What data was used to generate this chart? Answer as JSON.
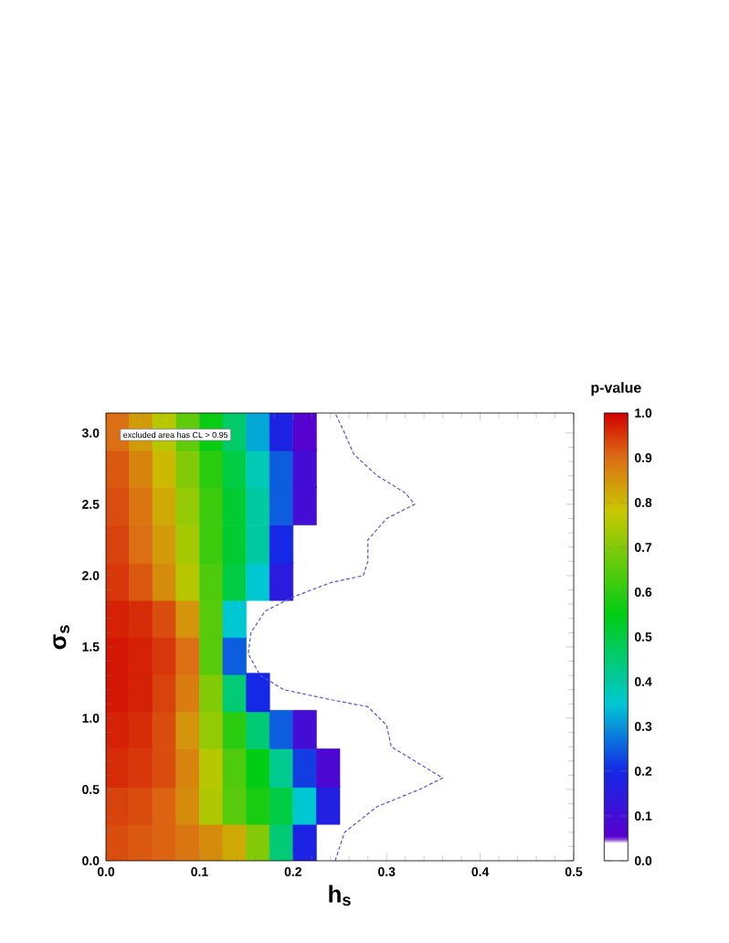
{
  "chart_data": {
    "type": "scatter",
    "xlabel": "h$_{s}$",
    "ylabel": "σ$_{s}$",
    "clabel": "p-value",
    "annotations": [
      "excluded area has CL > 0.95"
    ],
    "xlim": [
      0,
      0.5
    ],
    "ylim": [
      0,
      3.14
    ],
    "xticks": [
      {
        "value": 0,
        "label": "0.0"
      },
      0.1,
      0.2,
      0.3,
      0.4,
      0.5
    ],
    "yticks": [
      {
        "value": 0,
        "label": "0.0"
      },
      0.5,
      {
        "value": 1,
        "label": "1.0"
      },
      1.5,
      {
        "value": 2,
        "label": "2.0"
      },
      2.5,
      {
        "value": 3,
        "label": "3.0"
      }
    ],
    "clim": [
      0,
      1
    ],
    "cticks": [
      {
        "value": 0,
        "label": "0.0"
      },
      0.1,
      0.2,
      0.3,
      0.4,
      0.5,
      0.6,
      0.7,
      0.8,
      0.9,
      {
        "value": 1,
        "label": "1.0"
      }
    ],
    "marker": "square",
    "series": [
      {
        "colors": [
          "#d94d0e",
          "#da5810",
          "#db6312",
          "#da7612",
          "#d58c0d",
          "#cfaa07",
          "#82ca07",
          "#00ca73",
          "#1d23e3",
          "#d8420c",
          "#d94d0e",
          "#db6312",
          "#d58c0d",
          "#aec903",
          "#57cb0b",
          "#1acc11",
          "#00cc44",
          "#00c8d2",
          "#2220e1",
          "#d62c08",
          "#d7370a",
          "#d94d0e",
          "#d7840f",
          "#b7c802",
          "#4ecb0c",
          "#00cd14",
          "#00ca90",
          "#113de3",
          "#4c08d2",
          "#d52106",
          "#d62c08",
          "#d94d0e",
          "#d4940c",
          "#94c905",
          "#2bcc10",
          "#00ca73",
          "#0d5ddf",
          "#430dd5",
          "#d41604",
          "#d52106",
          "#d8420c",
          "#d97d11",
          "#82ca07",
          "#00ca73",
          "#1428e6",
          "#d41604",
          "#d52106",
          "#d7370a",
          "#dc6e14",
          "#57cb0b",
          "#0d5ddf",
          "#d52106",
          "#d62c08",
          "#d94d0e",
          "#d4940c",
          "#57cb0b",
          "#00c8d2",
          "#d7370a",
          "#da5810",
          "#d58c0d",
          "#b7c802",
          "#4ecb0c",
          "#00cc44",
          "#00c8d2",
          "#2b1bde",
          "#d8420c",
          "#dc6e14",
          "#d29b0a",
          "#a5c903",
          "#3dcb0e",
          "#00cc30",
          "#00c9a2",
          "#1428e6",
          "#d94d0e",
          "#da7612",
          "#cfaa07",
          "#94c905",
          "#3dcb0e",
          "#00cc30",
          "#00c9a2",
          "#0d5ddf",
          "#430dd5",
          "#da5810",
          "#d7840f",
          "#cbb903",
          "#82ca07",
          "#2bcc10",
          "#00cc44",
          "#00c9b6",
          "#0d5ddf",
          "#430dd5",
          "#dc6e14",
          "#d29b0a",
          "#b7c802",
          "#60cb0a",
          "#09cd13",
          "#00cb6a",
          "#04a8d6",
          "#1d23e3",
          "#5503cf"
        ],
        "x": [
          0.0125,
          0.0375,
          0.0625,
          0.0875,
          0.1125,
          0.1375,
          0.1625,
          0.1875,
          0.2125,
          0.0125,
          0.0375,
          0.0625,
          0.0875,
          0.1125,
          0.1375,
          0.1625,
          0.1875,
          0.2125,
          0.2375,
          0.0125,
          0.0375,
          0.0625,
          0.0875,
          0.1125,
          0.1375,
          0.1625,
          0.1875,
          0.2125,
          0.2375,
          0.0125,
          0.0375,
          0.0625,
          0.0875,
          0.1125,
          0.1375,
          0.1625,
          0.1875,
          0.2125,
          0.0125,
          0.0375,
          0.0625,
          0.0875,
          0.1125,
          0.1375,
          0.1625,
          0.0125,
          0.0375,
          0.0625,
          0.0875,
          0.1125,
          0.1375,
          0.0125,
          0.0375,
          0.0625,
          0.0875,
          0.1125,
          0.1375,
          0.0125,
          0.0375,
          0.0625,
          0.0875,
          0.1125,
          0.1375,
          0.1625,
          0.1875,
          0.0125,
          0.0375,
          0.0625,
          0.0875,
          0.1125,
          0.1375,
          0.1625,
          0.1875,
          0.0125,
          0.0375,
          0.0625,
          0.0875,
          0.1125,
          0.1375,
          0.1625,
          0.1875,
          0.2125,
          0.0125,
          0.0375,
          0.0625,
          0.0875,
          0.1125,
          0.1375,
          0.1625,
          0.1875,
          0.2125,
          0.0125,
          0.0375,
          0.0625,
          0.0875,
          0.1125,
          0.1375,
          0.1625,
          0.1875,
          0.2125
        ],
        "values": [
          0.13,
          0.13,
          0.13,
          0.13,
          0.13,
          0.13,
          0.13,
          0.13,
          0.13,
          0.39,
          0.39,
          0.39,
          0.39,
          0.39,
          0.39,
          0.39,
          0.39,
          0.39,
          0.39,
          0.65,
          0.65,
          0.65,
          0.65,
          0.65,
          0.65,
          0.65,
          0.65,
          0.65,
          0.65,
          0.92,
          0.92,
          0.92,
          0.92,
          0.92,
          0.92,
          0.92,
          0.92,
          0.92,
          1.18,
          1.18,
          1.18,
          1.18,
          1.18,
          1.18,
          1.18,
          1.44,
          1.44,
          1.44,
          1.44,
          1.44,
          1.44,
          1.7,
          1.7,
          1.7,
          1.7,
          1.7,
          1.7,
          1.96,
          1.96,
          1.96,
          1.96,
          1.96,
          1.96,
          1.96,
          1.96,
          2.22,
          2.22,
          2.22,
          2.22,
          2.22,
          2.22,
          2.22,
          2.22,
          2.49,
          2.49,
          2.49,
          2.49,
          2.49,
          2.49,
          2.49,
          2.49,
          2.49,
          2.75,
          2.75,
          2.75,
          2.75,
          2.75,
          2.75,
          2.75,
          2.75,
          2.75,
          3.01,
          3.01,
          3.01,
          3.01,
          3.01,
          3.01,
          3.01,
          3.01,
          3.01
        ],
        "cvalues": [
          0.93,
          0.92,
          0.91,
          0.89,
          0.86,
          0.82,
          0.7,
          0.45,
          0.18,
          0.94,
          0.93,
          0.91,
          0.86,
          0.75,
          0.65,
          0.58,
          0.5,
          0.35,
          0.17,
          0.96,
          0.95,
          0.93,
          0.87,
          0.76,
          0.64,
          0.55,
          0.42,
          0.22,
          0.08,
          0.97,
          0.96,
          0.93,
          0.85,
          0.72,
          0.6,
          0.45,
          0.25,
          0.1,
          0.98,
          0.97,
          0.94,
          0.88,
          0.7,
          0.45,
          0.2,
          0.98,
          0.97,
          0.95,
          0.9,
          0.65,
          0.25,
          0.97,
          0.96,
          0.93,
          0.85,
          0.65,
          0.35,
          0.95,
          0.92,
          0.86,
          0.76,
          0.64,
          0.5,
          0.35,
          0.15,
          0.94,
          0.9,
          0.84,
          0.74,
          0.62,
          0.52,
          0.4,
          0.2,
          0.93,
          0.89,
          0.82,
          0.72,
          0.62,
          0.52,
          0.4,
          0.25,
          0.1,
          0.92,
          0.87,
          0.8,
          0.7,
          0.6,
          0.5,
          0.38,
          0.25,
          0.1,
          0.9,
          0.84,
          0.76,
          0.66,
          0.56,
          0.46,
          0.32,
          0.18,
          0.06
        ]
      },
      {
        "type": "line",
        "color": "#5555dd",
        "line_style": "dashed",
        "marker": "none",
        "x": [
          0.245,
          0.255,
          0.29,
          0.335,
          0.36,
          0.33,
          0.305,
          0.3,
          0.28,
          0.24,
          0.19,
          0.165,
          0.152,
          0.155,
          0.17,
          0.2,
          0.24,
          0.275,
          0.28,
          0.28,
          0.3,
          0.33,
          0.32,
          0.29,
          0.265,
          0.255,
          0.245
        ],
        "values": [
          0.0,
          0.2,
          0.38,
          0.5,
          0.58,
          0.7,
          0.8,
          0.95,
          1.08,
          1.13,
          1.2,
          1.3,
          1.45,
          1.6,
          1.75,
          1.85,
          1.95,
          2.0,
          2.1,
          2.25,
          2.4,
          2.5,
          2.58,
          2.7,
          2.85,
          3.0,
          3.14
        ]
      }
    ]
  }
}
